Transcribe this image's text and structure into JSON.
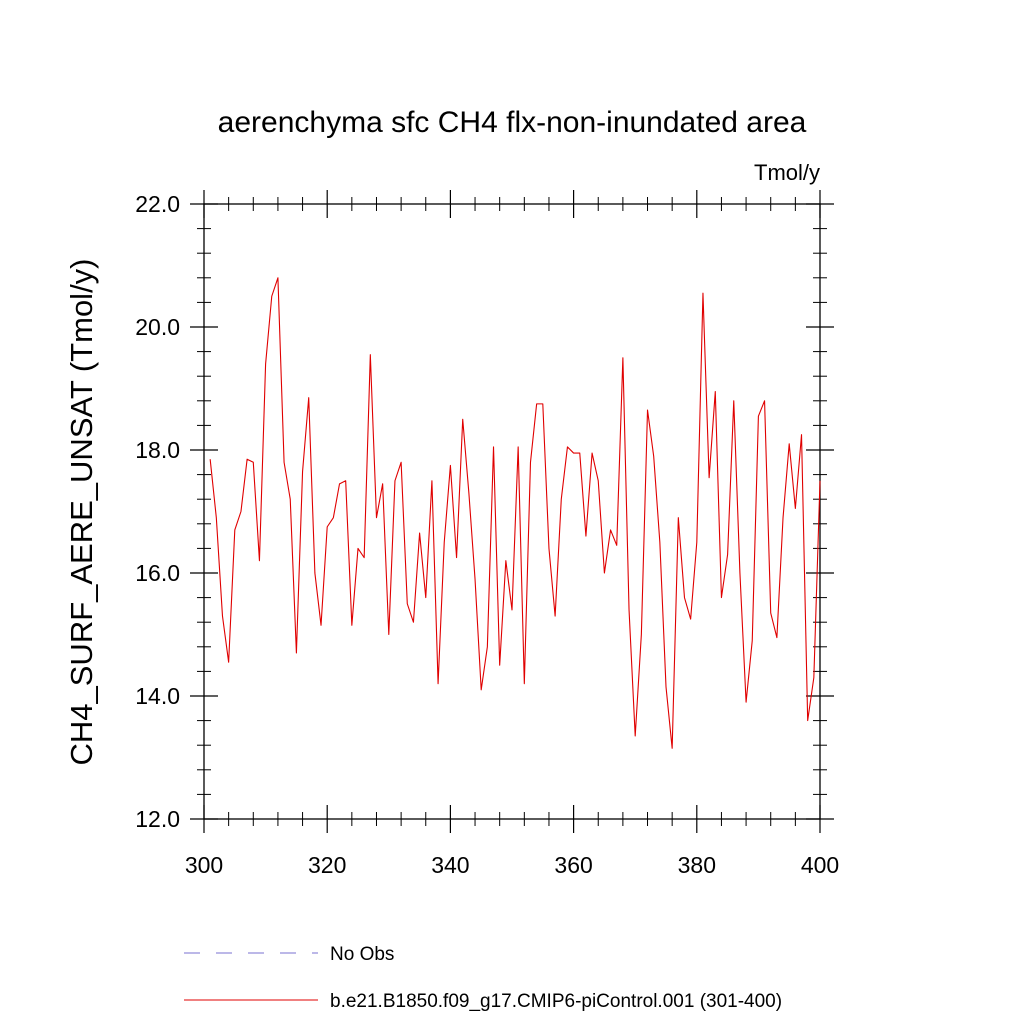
{
  "chart_data": {
    "type": "line",
    "title": "aerenchyma sfc CH4 flx-non-inundated area",
    "units_label": "Tmol/y",
    "ylabel": "CH4_SURF_AERE_UNSAT  (Tmol/y)",
    "xlabel": "",
    "xlim": [
      300,
      400
    ],
    "ylim": [
      12,
      22
    ],
    "xticks": [
      300,
      320,
      340,
      360,
      380,
      400
    ],
    "xtick_labels": [
      "300",
      "320",
      "340",
      "360",
      "380",
      "400"
    ],
    "yticks": [
      12,
      14,
      16,
      18,
      20,
      22
    ],
    "ytick_labels": [
      "12.0",
      "14.0",
      "16.0",
      "18.0",
      "20.0",
      "22.0"
    ],
    "grid": false,
    "legend_position": "bottom",
    "series": [
      {
        "name": "b.e21.B1850.f09_g17.CMIP6-piControl.001 (301-400)",
        "color": "#e00000",
        "style": "solid",
        "x": [
          301,
          302,
          303,
          304,
          305,
          306,
          307,
          308,
          309,
          310,
          311,
          312,
          313,
          314,
          315,
          316,
          317,
          318,
          319,
          320,
          321,
          322,
          323,
          324,
          325,
          326,
          327,
          328,
          329,
          330,
          331,
          332,
          333,
          334,
          335,
          336,
          337,
          338,
          339,
          340,
          341,
          342,
          343,
          344,
          345,
          346,
          347,
          348,
          349,
          350,
          351,
          352,
          353,
          354,
          355,
          356,
          357,
          358,
          359,
          360,
          361,
          362,
          363,
          364,
          365,
          366,
          367,
          368,
          369,
          370,
          371,
          372,
          373,
          374,
          375,
          376,
          377,
          378,
          379,
          380,
          381,
          382,
          383,
          384,
          385,
          386,
          387,
          388,
          389,
          390,
          391,
          392,
          393,
          394,
          395,
          396,
          397,
          398,
          399,
          400
        ],
        "values": [
          17.85,
          16.9,
          15.3,
          14.55,
          16.7,
          17.0,
          17.85,
          17.8,
          16.2,
          19.4,
          20.5,
          20.8,
          17.8,
          17.2,
          14.7,
          17.65,
          18.85,
          16.0,
          15.15,
          16.75,
          16.9,
          17.45,
          17.5,
          15.15,
          16.4,
          16.25,
          19.55,
          16.9,
          17.45,
          15.0,
          17.5,
          17.8,
          15.5,
          15.2,
          16.65,
          15.6,
          17.5,
          14.2,
          16.5,
          17.75,
          16.25,
          18.5,
          17.3,
          15.9,
          14.1,
          14.8,
          18.05,
          14.5,
          16.2,
          15.4,
          18.05,
          14.2,
          17.8,
          18.75,
          18.75,
          16.4,
          15.3,
          17.2,
          18.05,
          17.95,
          17.95,
          16.6,
          17.95,
          17.5,
          16.0,
          16.7,
          16.45,
          19.5,
          15.4,
          13.35,
          15.0,
          18.65,
          17.9,
          16.5,
          14.15,
          13.15,
          16.9,
          15.6,
          15.25,
          16.5,
          20.55,
          17.55,
          18.95,
          15.6,
          16.3,
          18.8,
          16.0,
          13.9,
          14.9,
          18.55,
          18.8,
          15.35,
          14.95,
          16.9,
          18.1,
          17.05,
          18.25,
          13.6,
          14.3,
          17.5
        ]
      }
    ],
    "legend": [
      {
        "label": "No Obs",
        "color": "#7a70d0",
        "style": "dashed"
      },
      {
        "label": "b.e21.B1850.f09_g17.CMIP6-piControl.001 (301-400)",
        "color": "#e00000",
        "style": "solid"
      }
    ]
  }
}
